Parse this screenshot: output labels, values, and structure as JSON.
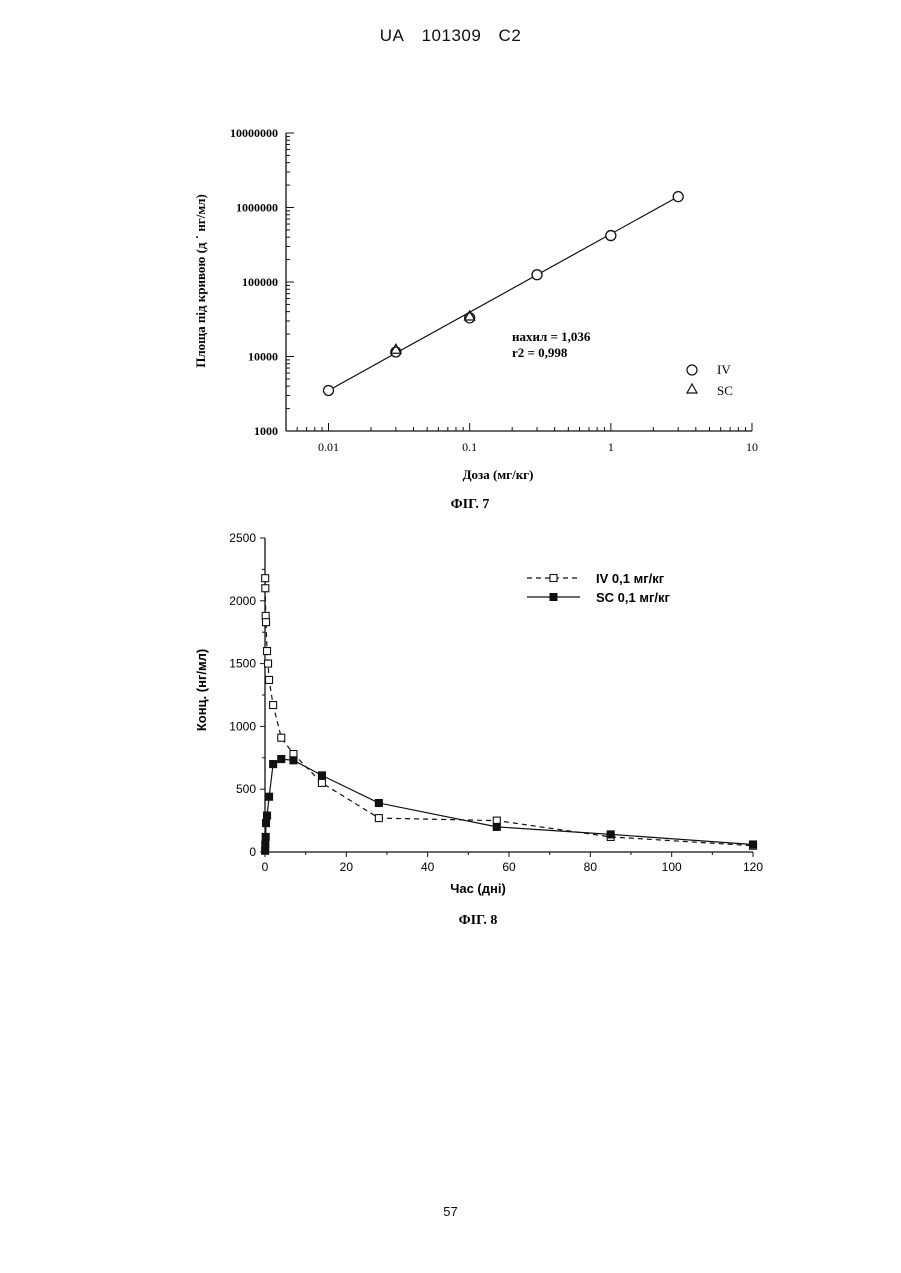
{
  "header": {
    "country": "UA",
    "number": "101309",
    "kind": "C2"
  },
  "page_number": "57",
  "figures": [
    {
      "caption": "ФІГ. 7"
    },
    {
      "caption": "ФІГ. 8"
    }
  ],
  "chart_data": [
    {
      "type": "scatter",
      "xlabel": "Доза (мг/кг)",
      "ylabel": "Площа під кривою (д ˙ нг/мл)",
      "xscale": "log",
      "yscale": "log",
      "xlim": [
        0.005,
        10
      ],
      "ylim": [
        1000,
        10000000
      ],
      "x_ticks": [
        "0.01",
        "0.1",
        "1",
        "10"
      ],
      "y_ticks": [
        "1000",
        "10000",
        "100000",
        "1000000",
        "10000000"
      ],
      "annotations": [
        "нахил = 1,036",
        "r2 = 0,998"
      ],
      "legend_position": "bottom-right",
      "series": [
        {
          "name": "IV",
          "marker": "circle",
          "x": [
            0.01,
            0.03,
            0.1,
            0.3,
            1,
            3
          ],
          "y": [
            3500,
            11500,
            33000,
            125000,
            420000,
            1400000
          ]
        },
        {
          "name": "SC",
          "marker": "triangle",
          "x": [
            0.03,
            0.1
          ],
          "y": [
            12500,
            35000
          ]
        }
      ],
      "fit_line": {
        "x": [
          0.01,
          3
        ],
        "y": [
          3500,
          1400000
        ]
      }
    },
    {
      "type": "line",
      "xlabel": "Час (дні)",
      "ylabel": "Конц. (нг/мл)",
      "xlim": [
        0,
        120
      ],
      "ylim": [
        0,
        2500
      ],
      "x_ticks": [
        "0",
        "20",
        "40",
        "60",
        "80",
        "100",
        "120"
      ],
      "y_ticks": [
        "0",
        "500",
        "1000",
        "1500",
        "2000",
        "2500"
      ],
      "legend_position": "top-right",
      "series": [
        {
          "name": "IV 0,1 мг/кг",
          "style": "dashed",
          "marker": "open-square",
          "x": [
            0.04,
            0.08,
            0.17,
            0.25,
            0.5,
            0.75,
            1,
            2,
            4,
            7,
            14,
            28,
            57,
            85,
            120
          ],
          "y": [
            2180,
            2100,
            1880,
            1830,
            1600,
            1500,
            1370,
            1170,
            910,
            780,
            550,
            270,
            250,
            120,
            50
          ]
        },
        {
          "name": "SC 0,1 мг/кг",
          "style": "solid",
          "marker": "filled-square",
          "x": [
            0.04,
            0.08,
            0.17,
            0.25,
            0.5,
            1,
            2,
            4,
            7,
            14,
            28,
            57,
            85,
            120
          ],
          "y": [
            10,
            60,
            120,
            230,
            290,
            440,
            700,
            740,
            730,
            610,
            390,
            200,
            140,
            60
          ]
        }
      ]
    }
  ]
}
